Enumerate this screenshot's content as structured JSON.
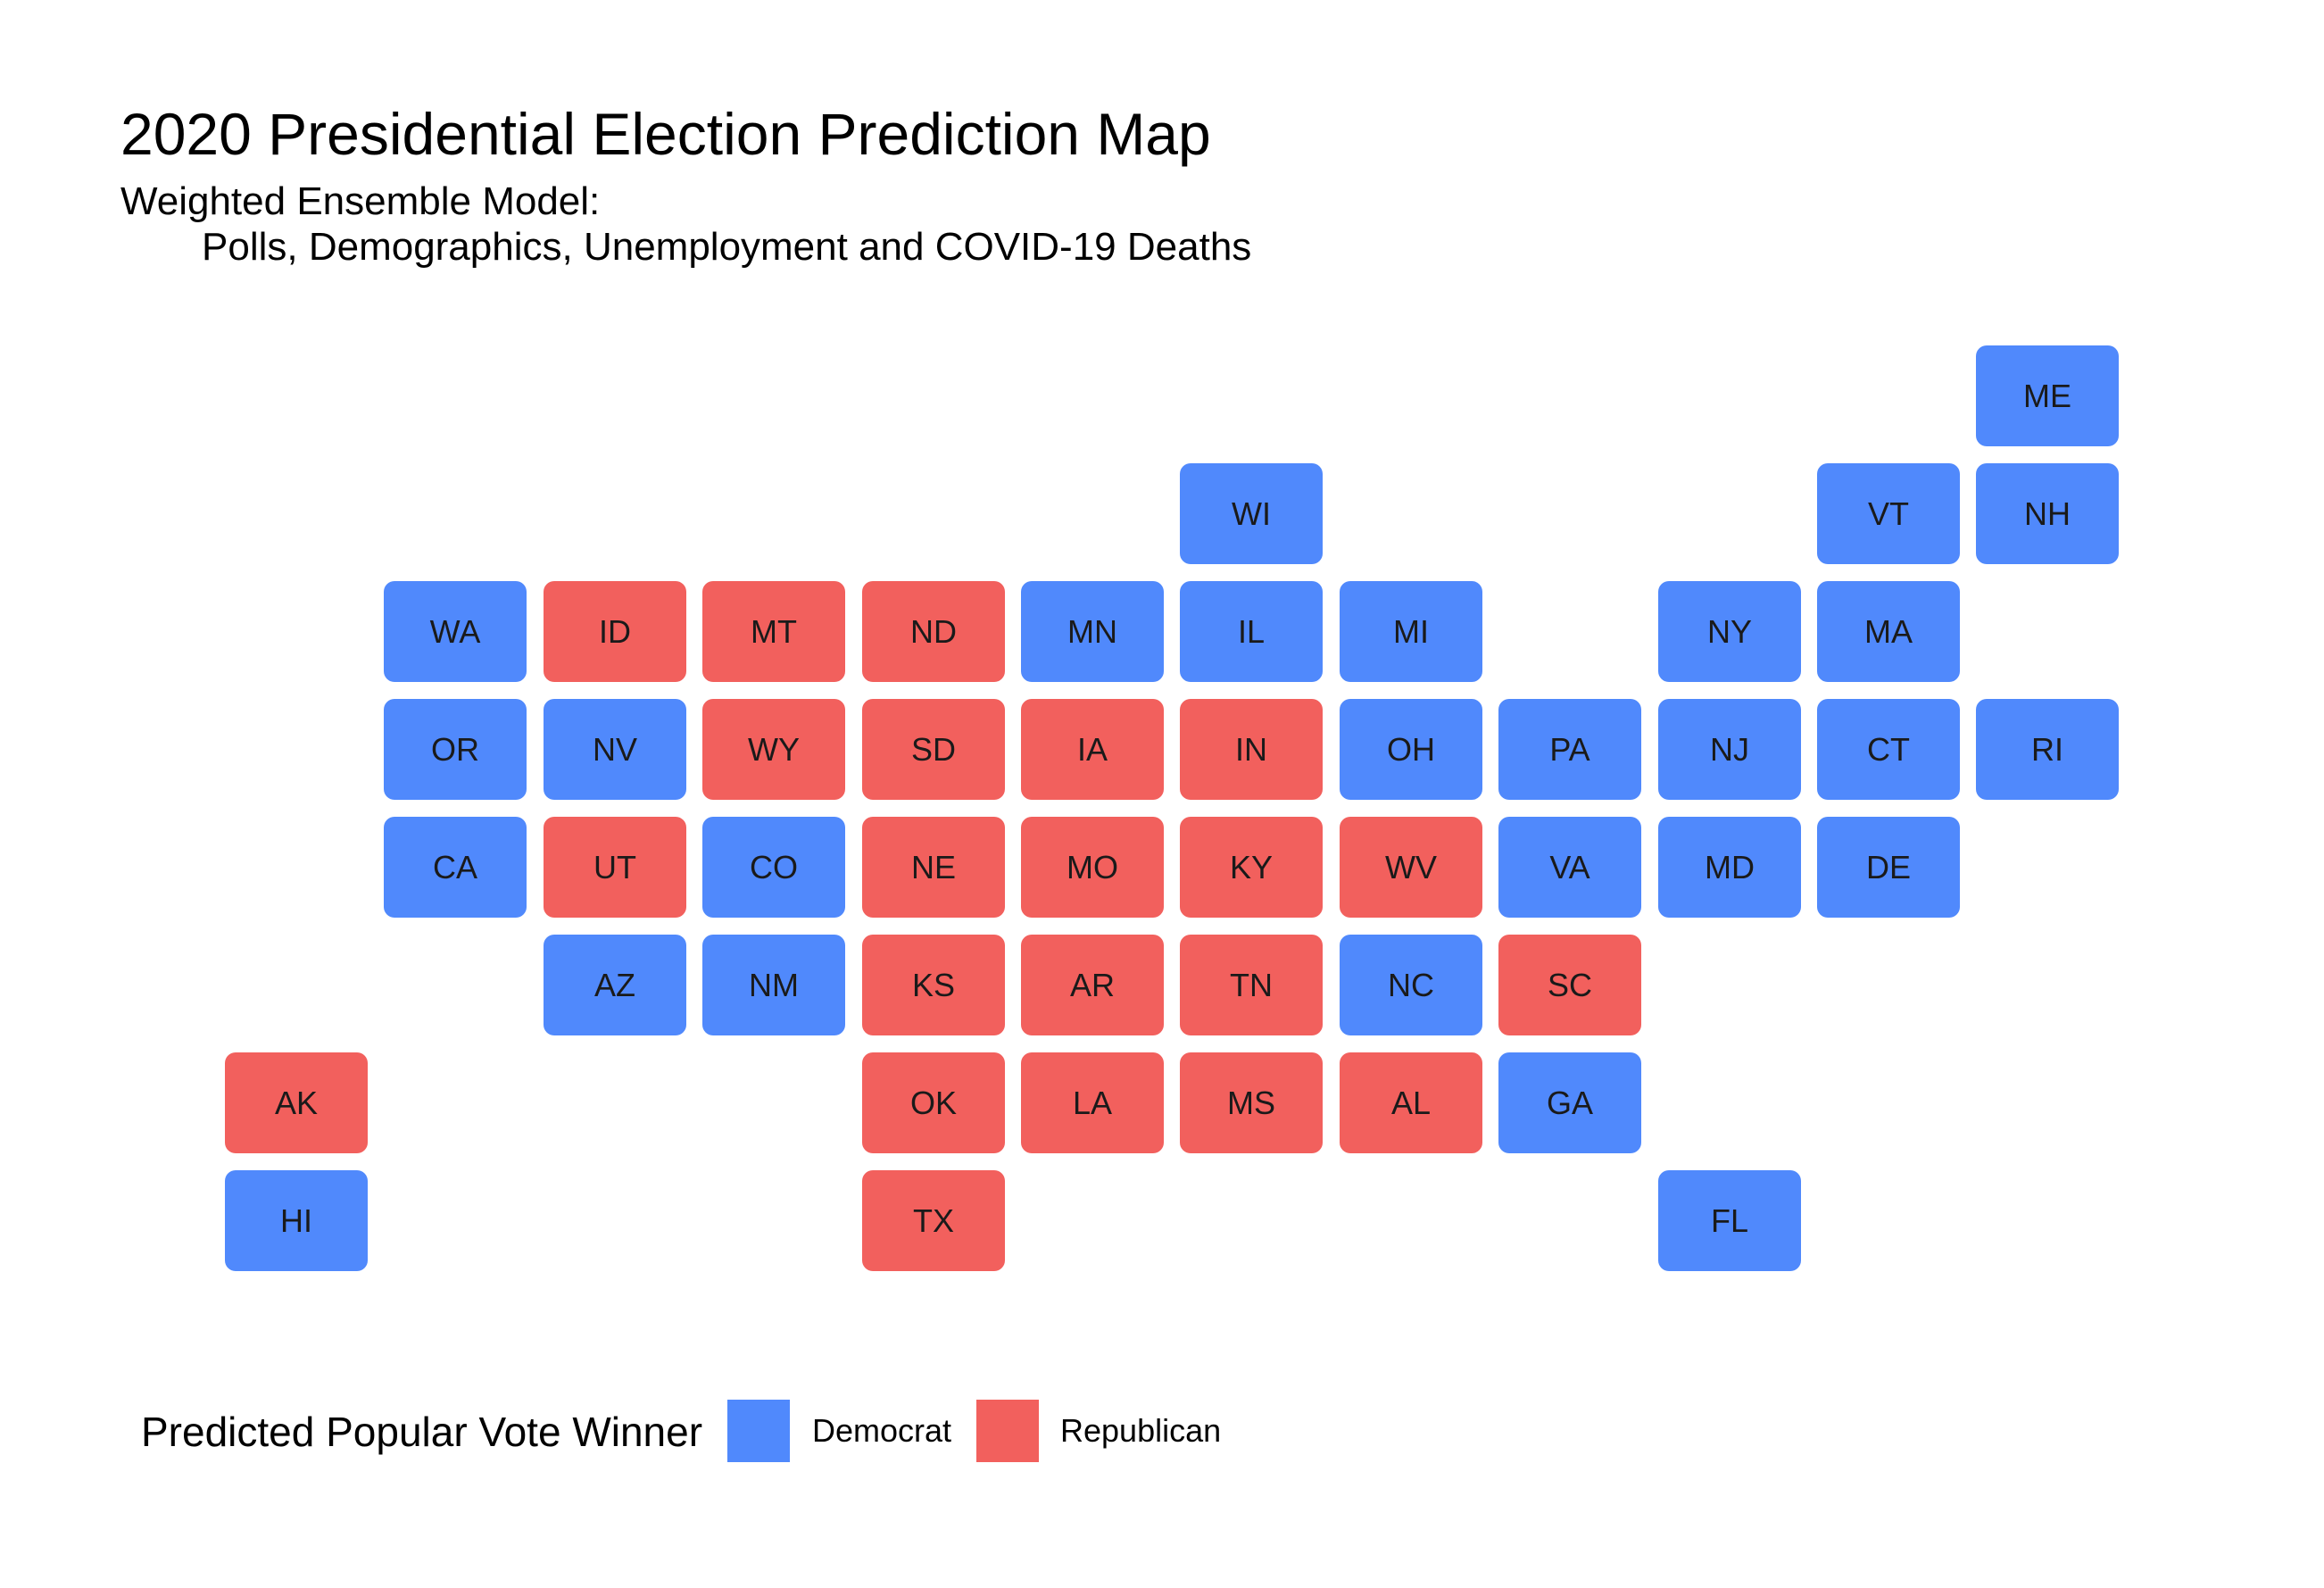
{
  "title": "2020 Presidential Election Prediction Map",
  "subtitle_line1": "Weighted Ensemble Model:",
  "subtitle_line2": "Polls, Demographics, Unemployment and COVID-19 Deaths",
  "colors": {
    "Democrat": "#5089FC",
    "Republican": "#F2605D"
  },
  "legend": {
    "title": "Predicted Popular Vote Winner",
    "items": [
      {
        "label": "Democrat",
        "color": "#5089FC"
      },
      {
        "label": "Republican",
        "color": "#F2605D"
      }
    ]
  },
  "states": [
    {
      "abbr": "ME",
      "col": 11,
      "row": 0,
      "winner": "Democrat"
    },
    {
      "abbr": "WI",
      "col": 6,
      "row": 1,
      "winner": "Democrat"
    },
    {
      "abbr": "VT",
      "col": 10,
      "row": 1,
      "winner": "Democrat"
    },
    {
      "abbr": "NH",
      "col": 11,
      "row": 1,
      "winner": "Democrat"
    },
    {
      "abbr": "WA",
      "col": 1,
      "row": 2,
      "winner": "Democrat"
    },
    {
      "abbr": "ID",
      "col": 2,
      "row": 2,
      "winner": "Republican"
    },
    {
      "abbr": "MT",
      "col": 3,
      "row": 2,
      "winner": "Republican"
    },
    {
      "abbr": "ND",
      "col": 4,
      "row": 2,
      "winner": "Republican"
    },
    {
      "abbr": "MN",
      "col": 5,
      "row": 2,
      "winner": "Democrat"
    },
    {
      "abbr": "IL",
      "col": 6,
      "row": 2,
      "winner": "Democrat"
    },
    {
      "abbr": "MI",
      "col": 7,
      "row": 2,
      "winner": "Democrat"
    },
    {
      "abbr": "NY",
      "col": 9,
      "row": 2,
      "winner": "Democrat"
    },
    {
      "abbr": "MA",
      "col": 10,
      "row": 2,
      "winner": "Democrat"
    },
    {
      "abbr": "OR",
      "col": 1,
      "row": 3,
      "winner": "Democrat"
    },
    {
      "abbr": "NV",
      "col": 2,
      "row": 3,
      "winner": "Democrat"
    },
    {
      "abbr": "WY",
      "col": 3,
      "row": 3,
      "winner": "Republican"
    },
    {
      "abbr": "SD",
      "col": 4,
      "row": 3,
      "winner": "Republican"
    },
    {
      "abbr": "IA",
      "col": 5,
      "row": 3,
      "winner": "Republican"
    },
    {
      "abbr": "IN",
      "col": 6,
      "row": 3,
      "winner": "Republican"
    },
    {
      "abbr": "OH",
      "col": 7,
      "row": 3,
      "winner": "Democrat"
    },
    {
      "abbr": "PA",
      "col": 8,
      "row": 3,
      "winner": "Democrat"
    },
    {
      "abbr": "NJ",
      "col": 9,
      "row": 3,
      "winner": "Democrat"
    },
    {
      "abbr": "CT",
      "col": 10,
      "row": 3,
      "winner": "Democrat"
    },
    {
      "abbr": "RI",
      "col": 11,
      "row": 3,
      "winner": "Democrat"
    },
    {
      "abbr": "CA",
      "col": 1,
      "row": 4,
      "winner": "Democrat"
    },
    {
      "abbr": "UT",
      "col": 2,
      "row": 4,
      "winner": "Republican"
    },
    {
      "abbr": "CO",
      "col": 3,
      "row": 4,
      "winner": "Democrat"
    },
    {
      "abbr": "NE",
      "col": 4,
      "row": 4,
      "winner": "Republican"
    },
    {
      "abbr": "MO",
      "col": 5,
      "row": 4,
      "winner": "Republican"
    },
    {
      "abbr": "KY",
      "col": 6,
      "row": 4,
      "winner": "Republican"
    },
    {
      "abbr": "WV",
      "col": 7,
      "row": 4,
      "winner": "Republican"
    },
    {
      "abbr": "VA",
      "col": 8,
      "row": 4,
      "winner": "Democrat"
    },
    {
      "abbr": "MD",
      "col": 9,
      "row": 4,
      "winner": "Democrat"
    },
    {
      "abbr": "DE",
      "col": 10,
      "row": 4,
      "winner": "Democrat"
    },
    {
      "abbr": "AZ",
      "col": 2,
      "row": 5,
      "winner": "Democrat"
    },
    {
      "abbr": "NM",
      "col": 3,
      "row": 5,
      "winner": "Democrat"
    },
    {
      "abbr": "KS",
      "col": 4,
      "row": 5,
      "winner": "Republican"
    },
    {
      "abbr": "AR",
      "col": 5,
      "row": 5,
      "winner": "Republican"
    },
    {
      "abbr": "TN",
      "col": 6,
      "row": 5,
      "winner": "Republican"
    },
    {
      "abbr": "NC",
      "col": 7,
      "row": 5,
      "winner": "Democrat"
    },
    {
      "abbr": "SC",
      "col": 8,
      "row": 5,
      "winner": "Republican"
    },
    {
      "abbr": "AK",
      "col": 0,
      "row": 6,
      "winner": "Republican"
    },
    {
      "abbr": "OK",
      "col": 4,
      "row": 6,
      "winner": "Republican"
    },
    {
      "abbr": "LA",
      "col": 5,
      "row": 6,
      "winner": "Republican"
    },
    {
      "abbr": "MS",
      "col": 6,
      "row": 6,
      "winner": "Republican"
    },
    {
      "abbr": "AL",
      "col": 7,
      "row": 6,
      "winner": "Republican"
    },
    {
      "abbr": "GA",
      "col": 8,
      "row": 6,
      "winner": "Democrat"
    },
    {
      "abbr": "HI",
      "col": 0,
      "row": 7,
      "winner": "Democrat"
    },
    {
      "abbr": "TX",
      "col": 4,
      "row": 7,
      "winner": "Republican"
    },
    {
      "abbr": "FL",
      "col": 9,
      "row": 7,
      "winner": "Democrat"
    }
  ]
}
